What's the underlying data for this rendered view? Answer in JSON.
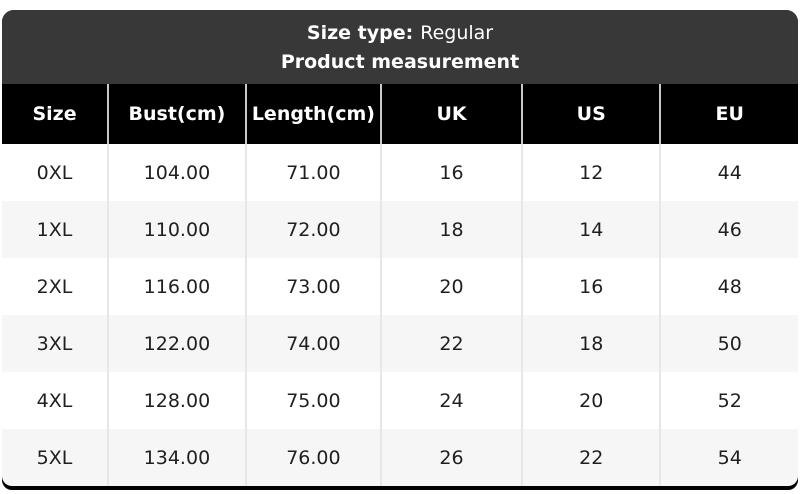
{
  "chart_data": {
    "type": "table",
    "size_type_label": "Size type:",
    "size_type_value": "Regular",
    "title": "Product measurement",
    "columns": [
      "Size",
      "Bust(cm)",
      "Length(cm)",
      "UK",
      "US",
      "EU"
    ],
    "rows": [
      [
        "0XL",
        "104.00",
        "71.00",
        "16",
        "12",
        "44"
      ],
      [
        "1XL",
        "110.00",
        "72.00",
        "18",
        "14",
        "46"
      ],
      [
        "2XL",
        "116.00",
        "73.00",
        "20",
        "16",
        "48"
      ],
      [
        "3XL",
        "122.00",
        "74.00",
        "22",
        "18",
        "50"
      ],
      [
        "4XL",
        "128.00",
        "75.00",
        "24",
        "20",
        "52"
      ],
      [
        "5XL",
        "134.00",
        "76.00",
        "26",
        "22",
        "54"
      ]
    ]
  },
  "colors": {
    "card_header_bg": "#383838",
    "table_head_bg": "#000000",
    "row_bg": "#ffffff",
    "row_alt_bg": "#f6f6f6",
    "head_text": "#ffffff",
    "body_text": "#1f1f1f",
    "head_divider": "#c9c9c9",
    "body_divider": "#e7e7e7"
  }
}
